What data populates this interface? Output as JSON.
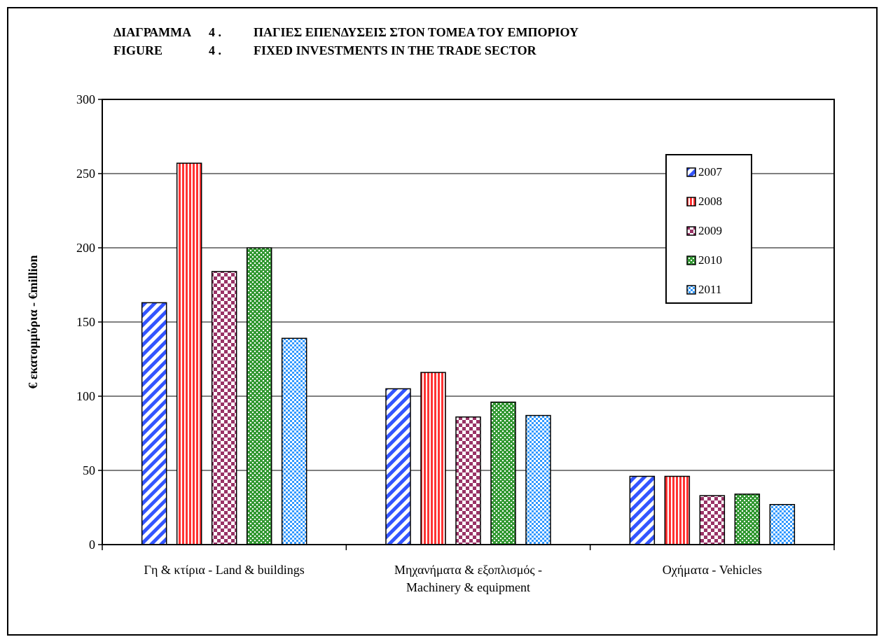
{
  "header": {
    "line1_label": "ΔΙΑΓΡΑΜΜΑ",
    "line1_num": "4 .",
    "line1_text": "ΠΑΓΙΕΣ ΕΠΕΝΔΥΣΕΙΣ ΣΤΟΝ ΤΟΜΕΑ ΤΟΥ ΕΜΠΟΡΙΟΥ",
    "line2_label": "FIGURE",
    "line2_num": "4 .",
    "line2_text": "FIXED INVESTMENTS IN THE TRADE SECTOR"
  },
  "chart_data": {
    "type": "bar",
    "title": "",
    "ylabel": "€ εκατομμύρια - €million",
    "xlabel": "",
    "ylim": [
      0,
      300
    ],
    "yticks": [
      0,
      50,
      100,
      150,
      200,
      250,
      300
    ],
    "grid": true,
    "legend_position": "right",
    "categories": [
      [
        "Γη & κτίρια - Land & buildings"
      ],
      [
        "Μηχανήματα & εξοπλισμός -",
        "Machinery & equipment"
      ],
      [
        "Οχήματα - Vehicles"
      ]
    ],
    "series": [
      {
        "name": "2007",
        "values": [
          163,
          105,
          46
        ],
        "color": "#3355ff",
        "pattern": "diagonal"
      },
      {
        "name": "2008",
        "values": [
          257,
          116,
          46
        ],
        "color": "#ff3333",
        "pattern": "vertical"
      },
      {
        "name": "2009",
        "values": [
          184,
          86,
          33
        ],
        "color": "#993366",
        "pattern": "checker"
      },
      {
        "name": "2010",
        "values": [
          200,
          96,
          34
        ],
        "color": "#339933",
        "pattern": "dots"
      },
      {
        "name": "2011",
        "values": [
          139,
          87,
          27
        ],
        "color": "#3399ff",
        "pattern": "fine-checker"
      }
    ]
  }
}
